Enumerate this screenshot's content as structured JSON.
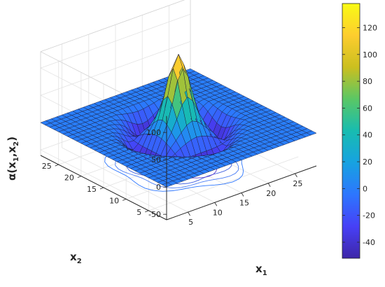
{
  "chart_data": {
    "type": "surface3d",
    "title": "",
    "xlabel": "x",
    "xlabel_sub": "1",
    "ylabel": "x",
    "ylabel_sub": "2",
    "zlabel_pre": "α(x",
    "zlabel_sub1": "1",
    "zlabel_mid": ",x",
    "zlabel_sub2": "2",
    "zlabel_post": ")",
    "xlim": [
      1,
      29
    ],
    "ylim": [
      1,
      29
    ],
    "zlim": [
      -60,
      130
    ],
    "x_ticks": [
      "5",
      "10",
      "15",
      "20",
      "25"
    ],
    "y_ticks": [
      "5",
      "10",
      "15",
      "20",
      "25"
    ],
    "z_ticks": [
      "-50",
      "0",
      "50",
      "100"
    ],
    "colorbar_ticks": [
      "-40",
      "-20",
      "0",
      "20",
      "40",
      "60",
      "80",
      "100",
      "120"
    ],
    "colorbar_range": [
      -52,
      138
    ],
    "colormap": [
      "#3e26a8",
      "#4740f6",
      "#2d76fe",
      "#17a2e1",
      "#18bcb0",
      "#5ac765",
      "#cbbf1f",
      "#fdcd2e",
      "#f9fb15"
    ],
    "surface_peak": 125,
    "surface_trough": -50,
    "grid_size": 29
  }
}
